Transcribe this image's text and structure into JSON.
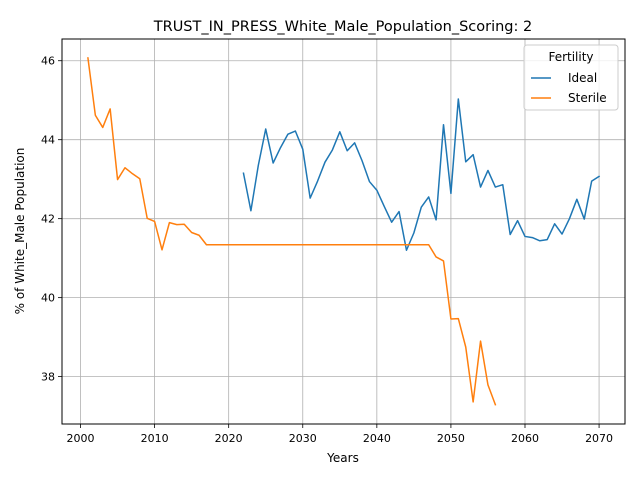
{
  "chart_data": {
    "type": "line",
    "title": "TRUST_IN_PRESS_White_Male_Population_Scoring: 2",
    "xlabel": "Years",
    "ylabel": "% of White_Male Population",
    "xlim": [
      1997.5,
      2073.5
    ],
    "ylim": [
      36.8,
      46.55
    ],
    "xticks": [
      2000,
      2010,
      2020,
      2030,
      2040,
      2050,
      2060,
      2070
    ],
    "yticks": [
      38,
      40,
      42,
      44,
      46
    ],
    "grid": true,
    "legend": {
      "title": "Fertility",
      "placement": "top-right"
    },
    "series": [
      {
        "name": "Ideal",
        "color": "#1f77b4",
        "x": [
          2022,
          2023,
          2024,
          2025,
          2026,
          2027,
          2028,
          2029,
          2030,
          2031,
          2032,
          2033,
          2034,
          2035,
          2036,
          2037,
          2038,
          2039,
          2040,
          2041,
          2042,
          2043,
          2044,
          2045,
          2046,
          2047,
          2048,
          2049,
          2050,
          2051,
          2052,
          2053,
          2054,
          2055,
          2056,
          2057,
          2058,
          2059,
          2060,
          2061,
          2062,
          2063,
          2064,
          2065,
          2066,
          2067,
          2068,
          2069,
          2070
        ],
        "y": [
          43.15,
          42.2,
          43.35,
          44.27,
          43.41,
          43.8,
          44.14,
          44.22,
          43.76,
          42.52,
          42.95,
          43.43,
          43.74,
          44.2,
          43.72,
          43.92,
          43.47,
          42.94,
          42.72,
          42.31,
          41.91,
          42.18,
          41.2,
          41.64,
          42.29,
          42.55,
          41.97,
          44.38,
          42.64,
          45.03,
          43.44,
          43.62,
          42.8,
          43.22,
          42.8,
          42.86,
          41.6,
          41.95,
          41.55,
          41.52,
          41.44,
          41.47,
          41.87,
          41.61,
          42.0,
          42.49,
          41.99,
          42.95,
          43.07
        ]
      },
      {
        "name": "Sterile",
        "color": "#ff7f0e",
        "x": [
          2001,
          2002,
          2003,
          2004,
          2005,
          2006,
          2007,
          2008,
          2009,
          2010,
          2011,
          2012,
          2013,
          2014,
          2015,
          2016,
          2017,
          2018,
          2019,
          2020,
          2021,
          2022,
          2023,
          2024,
          2025,
          2026,
          2027,
          2028,
          2029,
          2030,
          2031,
          2032,
          2033,
          2034,
          2035,
          2036,
          2037,
          2038,
          2039,
          2040,
          2041,
          2042,
          2043,
          2044,
          2045,
          2046,
          2047,
          2048,
          2049,
          2050,
          2051,
          2052,
          2053,
          2054,
          2055,
          2056
        ],
        "y": [
          46.07,
          44.62,
          44.31,
          44.78,
          42.99,
          43.29,
          43.14,
          43.01,
          42.01,
          41.93,
          41.21,
          41.9,
          41.85,
          41.86,
          41.65,
          41.58,
          41.34,
          41.34,
          41.34,
          41.34,
          41.34,
          41.34,
          41.34,
          41.34,
          41.34,
          41.34,
          41.34,
          41.34,
          41.34,
          41.34,
          41.34,
          41.34,
          41.34,
          41.34,
          41.34,
          41.34,
          41.34,
          41.34,
          41.34,
          41.34,
          41.34,
          41.34,
          41.34,
          41.34,
          41.34,
          41.34,
          41.34,
          41.03,
          40.93,
          39.46,
          39.47,
          38.75,
          37.36,
          38.9,
          37.79,
          37.29
        ]
      }
    ]
  }
}
